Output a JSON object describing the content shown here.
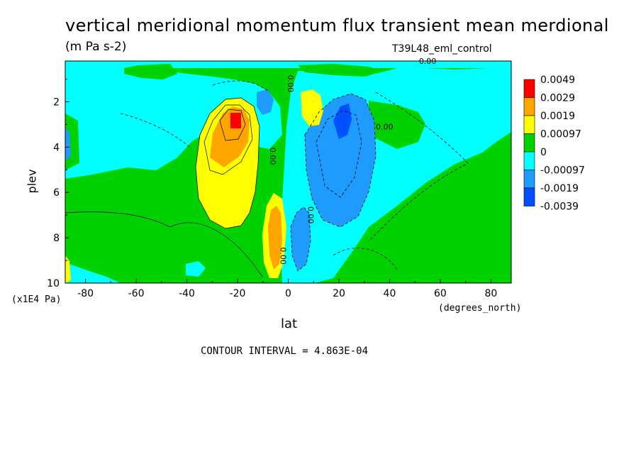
{
  "chart_data": {
    "type": "heatmap",
    "title": "vertical meridional momentum flux transient mean merdional",
    "units": "(m Pa s-2)",
    "run_label": "T39L48_eml_control",
    "xlabel": "lat",
    "x_units": "(degrees_north)",
    "ylabel": "plev",
    "y_units": "(x1E4 Pa)",
    "contour_interval": "CONTOUR INTERVAL = 4.863E-04",
    "xlim": [
      -88,
      88
    ],
    "ylim": [
      10,
      0.2
    ],
    "x_ticks": [
      -80,
      -60,
      -40,
      -20,
      0,
      20,
      40,
      60,
      80
    ],
    "x_tick_labels": [
      "-80",
      "-60",
      "-40",
      "-20",
      "0",
      "20",
      "40",
      "60",
      "80"
    ],
    "y_ticks": [
      2,
      4,
      6,
      8,
      10
    ],
    "y_tick_labels": [
      "2",
      "4",
      "6",
      "8",
      "10"
    ],
    "contour_labels": [
      {
        "text": "0.00",
        "lat": 55,
        "plev": 0.2
      },
      {
        "text": "0.00",
        "lat": 1,
        "plev": 1.2
      },
      {
        "text": "0.00",
        "lat": -6,
        "plev": 4.4
      },
      {
        "text": "0.00",
        "lat": 9,
        "plev": 7.0
      },
      {
        "text": "0.00",
        "lat": 38,
        "plev": 3.1
      },
      {
        "text": "0.00",
        "lat": -2,
        "plev": 8.8
      }
    ],
    "legend": {
      "colors": [
        "#ff0000",
        "#ffa500",
        "#ffff00",
        "#00d200",
        "#00ffff",
        "#1e9bff",
        "#0050ff"
      ],
      "labels": [
        "0.0049",
        "0.0029",
        "0.0019",
        "0.00097",
        "0",
        "-0.00097",
        "-0.0019",
        "-0.0039"
      ]
    },
    "features": [
      {
        "name": "northern negative core",
        "lat": 22,
        "plev": 2.8,
        "level": -3
      },
      {
        "name": "southern positive core",
        "lat": -21,
        "plev": 2.8,
        "level": 3
      },
      {
        "name": "equatorial positive band",
        "lat": -5,
        "plev": 8.0,
        "level": 2
      },
      {
        "name": "equatorial negative band",
        "lat": 5,
        "plev": 8.2,
        "level": -2
      }
    ]
  },
  "colors": {
    "background": "#00d200",
    "pos_high": "#ff0000",
    "pos_mid": "#ffa500",
    "pos_low": "#ffff00",
    "neg_low": "#00ffff",
    "neg_mid": "#1e9bff",
    "neg_high": "#0050ff"
  }
}
